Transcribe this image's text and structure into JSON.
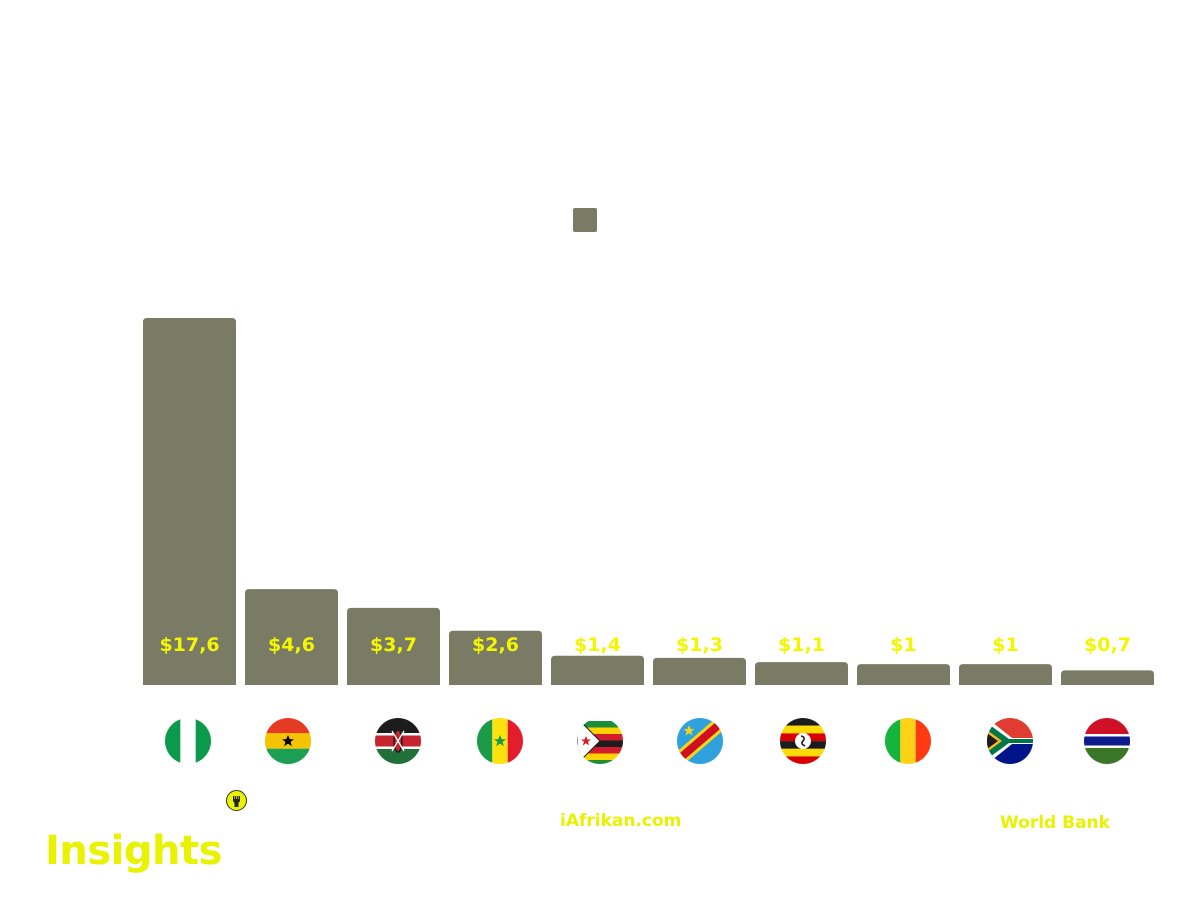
{
  "colors": {
    "bar": "#7a7b64",
    "label": "#f3f600",
    "accent": "#e9f200"
  },
  "chart_data": {
    "type": "bar",
    "categories": [
      "Nigeria",
      "Ghana",
      "Kenya",
      "Senegal",
      "Zimbabwe",
      "DR Congo",
      "Uganda",
      "Mali",
      "South Africa",
      "Gambia"
    ],
    "values": [
      17.6,
      4.6,
      3.7,
      2.6,
      1.4,
      1.3,
      1.1,
      1.0,
      1.0,
      0.7
    ],
    "value_labels": [
      "$17,6",
      "$4,6",
      "$3,7",
      "$2,6",
      "$1,4",
      "$1,3",
      "$1,1",
      "$1",
      "$1",
      "$0,7"
    ],
    "flags": [
      "nigeria-flag-icon",
      "ghana-flag-icon",
      "kenya-flag-icon",
      "senegal-flag-icon",
      "zimbabwe-flag-icon",
      "drc-flag-icon",
      "uganda-flag-icon",
      "mali-flag-icon",
      "south-africa-flag-icon",
      "gambia-flag-icon"
    ],
    "ylim": [
      0,
      17.6
    ],
    "legend": {
      "position": "top-center",
      "entries": [
        ""
      ]
    },
    "title": "",
    "xlabel": "",
    "ylabel": ""
  },
  "footer": {
    "brand": "Insights",
    "site": "iAfrikan.com",
    "source": "World Bank",
    "logo_icon": "raised-fist-icon"
  }
}
